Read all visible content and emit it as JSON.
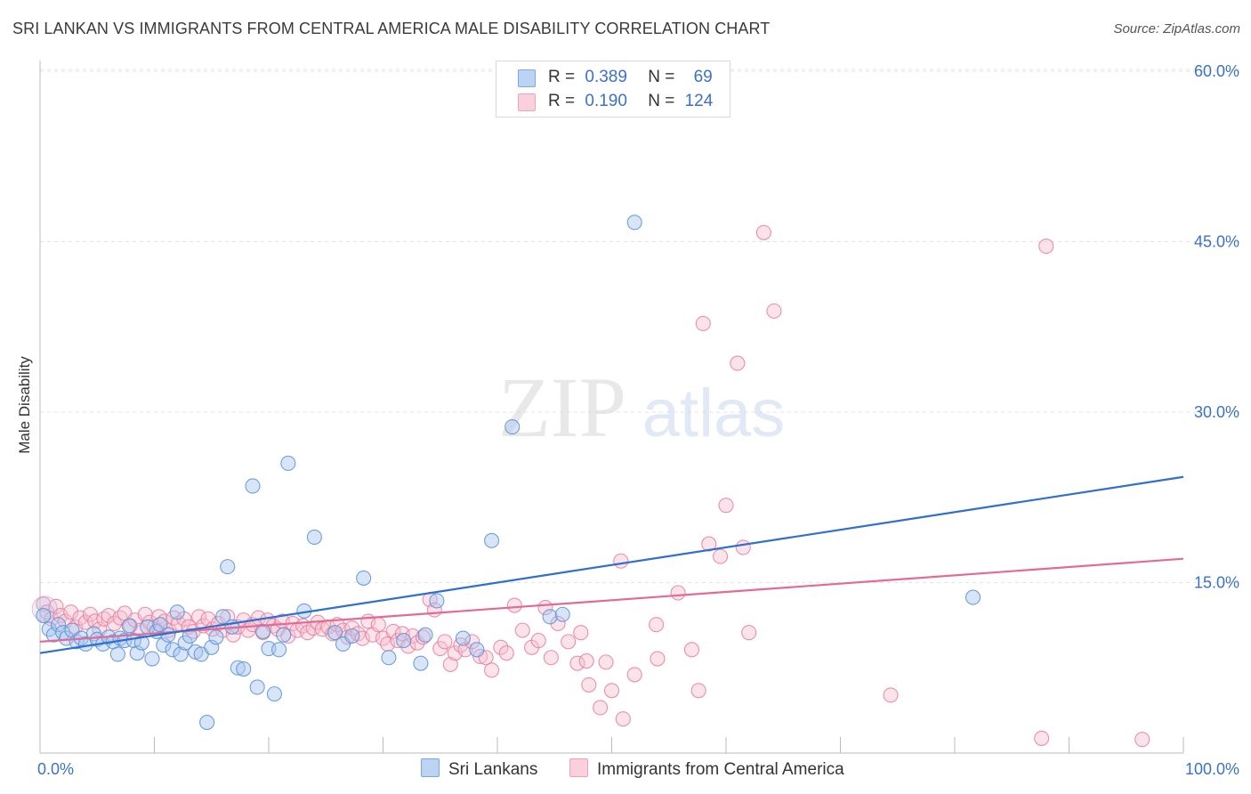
{
  "header": {
    "title": "SRI LANKAN VS IMMIGRANTS FROM CENTRAL AMERICA MALE DISABILITY CORRELATION CHART",
    "source": "Source: ZipAtlas.com"
  },
  "watermark": {
    "zip": "ZIP",
    "atlas": "atlas"
  },
  "legend": {
    "rows": [
      {
        "r_label": "R =",
        "r_value": "0.389",
        "n_label": "N =",
        "n_value": "69",
        "color": "#7aa7e0"
      },
      {
        "r_label": "R =",
        "r_value": "0.190",
        "n_label": "N =",
        "n_value": "124",
        "color": "#f2a0b8"
      }
    ]
  },
  "bottom_legend": {
    "series1": "Sri Lankans",
    "series2": "Immigrants from Central America"
  },
  "colors": {
    "blue_fill": "#a9c6ef",
    "blue_stroke": "#5b8fd6",
    "blue_line": "#2f6fd0",
    "pink_fill": "#f7c0d0",
    "pink_stroke": "#e87da0",
    "pink_line": "#e26b95",
    "tick_label": "#3b72c6",
    "grid": "#e3e3e3"
  },
  "chart_data": {
    "type": "scatter",
    "title": "SRI LANKAN VS IMMIGRANTS FROM CENTRAL AMERICA MALE DISABILITY CORRELATION CHART",
    "xlabel": "",
    "ylabel": "Male Disability",
    "xlim": [
      0,
      100
    ],
    "ylim": [
      0,
      63
    ],
    "x_tick_labels": [
      "0.0%",
      "100.0%"
    ],
    "y_ticks": [
      15,
      30,
      45,
      60
    ],
    "y_tick_labels": [
      "15.0%",
      "30.0%",
      "45.0%",
      "60.0%"
    ],
    "grid": "horizontal dashed",
    "legend_position": "top-center",
    "series": [
      {
        "name": "Sri Lankans",
        "r": 0.389,
        "n": 69,
        "trend": {
          "x": [
            0,
            100
          ],
          "y": [
            8.8,
            24.3
          ]
        },
        "points": [
          [
            0.3,
            12.1
          ],
          [
            0.8,
            10.9
          ],
          [
            1.2,
            10.4
          ],
          [
            1.6,
            11.3
          ],
          [
            2,
            10.6
          ],
          [
            2.3,
            10.1
          ],
          [
            2.8,
            10.8
          ],
          [
            3.2,
            9.8
          ],
          [
            3.6,
            10.1
          ],
          [
            4,
            9.6
          ],
          [
            4.7,
            10.5
          ],
          [
            5,
            10
          ],
          [
            5.5,
            9.6
          ],
          [
            6,
            10.2
          ],
          [
            6.4,
            9.8
          ],
          [
            6.8,
            8.7
          ],
          [
            7,
            10.1
          ],
          [
            7.4,
            9.9
          ],
          [
            7.8,
            11.2
          ],
          [
            8.2,
            9.9
          ],
          [
            8.5,
            8.8
          ],
          [
            8.9,
            9.7
          ],
          [
            9.4,
            11.1
          ],
          [
            9.8,
            8.3
          ],
          [
            10.2,
            10.7
          ],
          [
            10.5,
            11.3
          ],
          [
            10.8,
            9.5
          ],
          [
            11.2,
            10.4
          ],
          [
            11.6,
            9.1
          ],
          [
            12,
            12.4
          ],
          [
            12.3,
            8.7
          ],
          [
            12.7,
            9.7
          ],
          [
            13.1,
            10.3
          ],
          [
            13.6,
            8.9
          ],
          [
            14.1,
            8.7
          ],
          [
            14.6,
            2.7
          ],
          [
            15,
            9.3
          ],
          [
            15.4,
            10.2
          ],
          [
            16,
            12
          ],
          [
            16.4,
            16.4
          ],
          [
            16.8,
            11.1
          ],
          [
            17.3,
            7.5
          ],
          [
            17.8,
            7.4
          ],
          [
            18.6,
            23.5
          ],
          [
            19,
            5.8
          ],
          [
            19.5,
            10.7
          ],
          [
            20,
            9.2
          ],
          [
            20.5,
            5.2
          ],
          [
            20.9,
            9.1
          ],
          [
            21.3,
            10.4
          ],
          [
            21.7,
            25.5
          ],
          [
            23.1,
            12.5
          ],
          [
            24,
            19
          ],
          [
            25.8,
            10.6
          ],
          [
            26.5,
            9.6
          ],
          [
            27.3,
            10.3
          ],
          [
            28.3,
            15.4
          ],
          [
            30.5,
            8.4
          ],
          [
            31.8,
            9.9
          ],
          [
            33.3,
            7.9
          ],
          [
            33.7,
            10.4
          ],
          [
            34.7,
            13.4
          ],
          [
            38.2,
            9.1
          ],
          [
            37,
            10.1
          ],
          [
            39.5,
            18.7
          ],
          [
            41.3,
            28.7
          ],
          [
            44.6,
            12
          ],
          [
            45.7,
            12.2
          ],
          [
            52,
            46.7
          ],
          [
            81.6,
            13.7
          ]
        ]
      },
      {
        "name": "Immigrants from Central America",
        "r": 0.19,
        "n": 124,
        "trend": {
          "x": [
            0,
            100
          ],
          "y": [
            9.8,
            17.1
          ]
        },
        "points": [
          [
            0.3,
            13.1
          ],
          [
            0.6,
            12.4
          ],
          [
            1,
            11.8
          ],
          [
            1.4,
            12.9
          ],
          [
            1.8,
            12.1
          ],
          [
            2.2,
            11.6
          ],
          [
            2.7,
            12.4
          ],
          [
            3.1,
            11.1
          ],
          [
            3.5,
            11.9
          ],
          [
            4,
            11.5
          ],
          [
            4.4,
            12.2
          ],
          [
            4.8,
            11.6
          ],
          [
            5.2,
            10.9
          ],
          [
            5.6,
            11.8
          ],
          [
            6,
            12.1
          ],
          [
            6.5,
            11.4
          ],
          [
            7,
            11.9
          ],
          [
            7.4,
            12.3
          ],
          [
            7.9,
            11.2
          ],
          [
            8.3,
            11.7
          ],
          [
            8.8,
            10.8
          ],
          [
            9.2,
            12.2
          ],
          [
            9.6,
            11.5
          ],
          [
            10,
            11.1
          ],
          [
            10.4,
            12
          ],
          [
            10.9,
            11.6
          ],
          [
            11.3,
            10.8
          ],
          [
            11.7,
            11.9
          ],
          [
            12.1,
            11.4
          ],
          [
            12.6,
            11.8
          ],
          [
            13,
            11.1
          ],
          [
            13.4,
            10.7
          ],
          [
            13.9,
            12
          ],
          [
            14.3,
            11.2
          ],
          [
            14.7,
            11.8
          ],
          [
            15.1,
            10.9
          ],
          [
            15.6,
            11.4
          ],
          [
            16,
            10.8
          ],
          [
            16.4,
            12
          ],
          [
            16.9,
            10.4
          ],
          [
            17.3,
            11.1
          ],
          [
            17.8,
            11.7
          ],
          [
            18.2,
            10.8
          ],
          [
            18.6,
            11.3
          ],
          [
            19.1,
            11.9
          ],
          [
            19.5,
            10.6
          ],
          [
            19.9,
            11.7
          ],
          [
            20.4,
            11.2
          ],
          [
            20.8,
            10.9
          ],
          [
            21.2,
            11.6
          ],
          [
            21.7,
            10.3
          ],
          [
            22.1,
            11.4
          ],
          [
            22.5,
            10.8
          ],
          [
            23,
            11.2
          ],
          [
            23.4,
            10.6
          ],
          [
            23.9,
            11
          ],
          [
            24.3,
            11.5
          ],
          [
            24.7,
            10.9
          ],
          [
            25.2,
            11.1
          ],
          [
            25.6,
            10.5
          ],
          [
            26,
            11.3
          ],
          [
            26.5,
            10.8
          ],
          [
            26.9,
            10.2
          ],
          [
            27.3,
            11
          ],
          [
            27.8,
            10.5
          ],
          [
            28.2,
            10.1
          ],
          [
            28.7,
            11.6
          ],
          [
            29.1,
            10.4
          ],
          [
            29.6,
            11.3
          ],
          [
            30,
            10.1
          ],
          [
            30.4,
            9.6
          ],
          [
            30.9,
            10.7
          ],
          [
            31.3,
            9.9
          ],
          [
            31.7,
            10.5
          ],
          [
            32.2,
            9.4
          ],
          [
            32.6,
            10.3
          ],
          [
            33,
            9.7
          ],
          [
            33.5,
            10.2
          ],
          [
            34.1,
            13.5
          ],
          [
            34.5,
            12.6
          ],
          [
            35,
            9.2
          ],
          [
            35.4,
            9.8
          ],
          [
            35.9,
            7.8
          ],
          [
            36.3,
            8.8
          ],
          [
            36.8,
            9.5
          ],
          [
            37.2,
            9.1
          ],
          [
            37.8,
            9.8
          ],
          [
            38.5,
            8.5
          ],
          [
            39,
            8.4
          ],
          [
            39.5,
            7.3
          ],
          [
            40.3,
            9.3
          ],
          [
            40.8,
            8.8
          ],
          [
            41.5,
            13
          ],
          [
            42.2,
            10.8
          ],
          [
            43,
            9.3
          ],
          [
            43.6,
            9.9
          ],
          [
            44.2,
            12.8
          ],
          [
            44.7,
            8.4
          ],
          [
            45.3,
            11.4
          ],
          [
            46.2,
            9.8
          ],
          [
            47.3,
            10.6
          ],
          [
            47,
            7.9
          ],
          [
            47.8,
            8.1
          ],
          [
            48,
            6
          ],
          [
            49,
            4
          ],
          [
            49.5,
            8
          ],
          [
            50,
            5.5
          ],
          [
            50.8,
            16.9
          ],
          [
            51,
            3
          ],
          [
            52,
            6.9
          ],
          [
            53.9,
            11.3
          ],
          [
            54,
            8.3
          ],
          [
            55.8,
            14.1
          ],
          [
            57,
            9.1
          ],
          [
            57.6,
            5.5
          ],
          [
            58.5,
            18.4
          ],
          [
            59.5,
            17.3
          ],
          [
            60,
            21.8
          ],
          [
            61.5,
            18.1
          ],
          [
            62,
            10.6
          ],
          [
            61,
            34.3
          ],
          [
            58,
            37.8
          ],
          [
            64.2,
            38.9
          ],
          [
            63.3,
            45.8
          ],
          [
            88,
            44.6
          ],
          [
            74.4,
            5.1
          ],
          [
            87.6,
            1.3
          ],
          [
            96.4,
            1.2
          ]
        ]
      }
    ]
  }
}
